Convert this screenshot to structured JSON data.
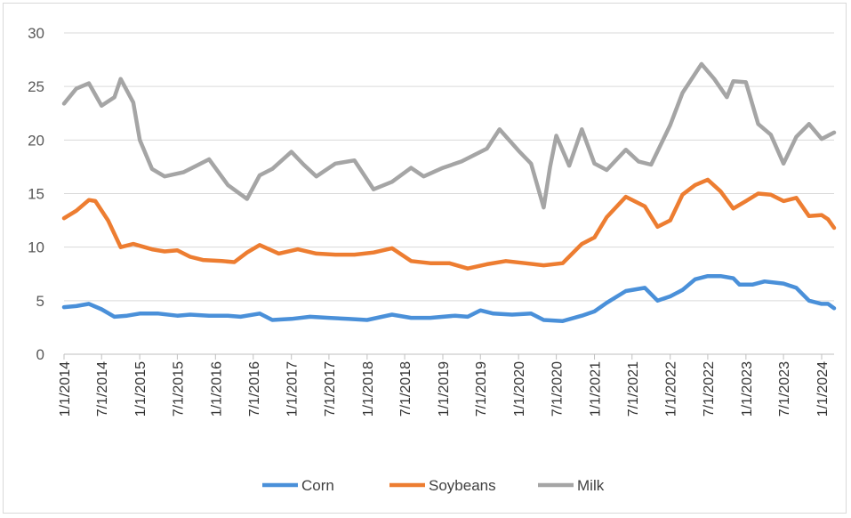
{
  "chart_data": {
    "type": "line",
    "title": "",
    "xlabel": "",
    "ylabel": "",
    "ylim": [
      0,
      30
    ],
    "yticks": [
      0,
      5,
      10,
      15,
      20,
      25,
      30
    ],
    "xlim": [
      "2014-01-01",
      "2024-03-01"
    ],
    "xticks": [
      "1/1/2014",
      "7/1/2014",
      "1/1/2015",
      "7/1/2015",
      "1/1/2016",
      "7/1/2016",
      "1/1/2017",
      "7/1/2017",
      "1/1/2018",
      "7/1/2018",
      "1/1/2019",
      "7/1/2019",
      "1/1/2020",
      "7/1/2020",
      "1/1/2021",
      "7/1/2021",
      "1/1/2022",
      "7/1/2022",
      "1/1/2023",
      "7/1/2023",
      "1/1/2024"
    ],
    "grid": true,
    "legend_position": "bottom",
    "series": [
      {
        "name": "Corn",
        "color": "#4a90d9",
        "points": [
          [
            "2014-01-01",
            4.4
          ],
          [
            "2014-03-01",
            4.5
          ],
          [
            "2014-05-01",
            4.7
          ],
          [
            "2014-07-01",
            4.2
          ],
          [
            "2014-09-01",
            3.5
          ],
          [
            "2014-11-01",
            3.6
          ],
          [
            "2015-01-01",
            3.8
          ],
          [
            "2015-04-01",
            3.8
          ],
          [
            "2015-07-01",
            3.6
          ],
          [
            "2015-09-01",
            3.7
          ],
          [
            "2015-12-01",
            3.6
          ],
          [
            "2016-03-01",
            3.6
          ],
          [
            "2016-05-01",
            3.5
          ],
          [
            "2016-08-01",
            3.8
          ],
          [
            "2016-10-01",
            3.2
          ],
          [
            "2017-01-01",
            3.3
          ],
          [
            "2017-04-01",
            3.5
          ],
          [
            "2017-07-01",
            3.4
          ],
          [
            "2017-10-01",
            3.3
          ],
          [
            "2018-01-01",
            3.2
          ],
          [
            "2018-05-01",
            3.7
          ],
          [
            "2018-08-01",
            3.4
          ],
          [
            "2018-11-01",
            3.4
          ],
          [
            "2019-03-01",
            3.6
          ],
          [
            "2019-05-01",
            3.5
          ],
          [
            "2019-07-01",
            4.1
          ],
          [
            "2019-09-01",
            3.8
          ],
          [
            "2019-12-01",
            3.7
          ],
          [
            "2020-03-01",
            3.8
          ],
          [
            "2020-05-01",
            3.2
          ],
          [
            "2020-08-01",
            3.1
          ],
          [
            "2020-11-01",
            3.6
          ],
          [
            "2021-01-01",
            4.0
          ],
          [
            "2021-03-01",
            4.8
          ],
          [
            "2021-06-01",
            5.9
          ],
          [
            "2021-09-01",
            6.2
          ],
          [
            "2021-11-01",
            5.0
          ],
          [
            "2022-01-01",
            5.4
          ],
          [
            "2022-03-01",
            6.0
          ],
          [
            "2022-05-01",
            7.0
          ],
          [
            "2022-07-01",
            7.3
          ],
          [
            "2022-09-01",
            7.3
          ],
          [
            "2022-11-01",
            7.1
          ],
          [
            "2022-12-01",
            6.5
          ],
          [
            "2023-02-01",
            6.5
          ],
          [
            "2023-04-01",
            6.8
          ],
          [
            "2023-07-01",
            6.6
          ],
          [
            "2023-09-01",
            6.2
          ],
          [
            "2023-11-01",
            5.0
          ],
          [
            "2024-01-01",
            4.7
          ],
          [
            "2024-02-01",
            4.7
          ],
          [
            "2024-03-01",
            4.3
          ]
        ]
      },
      {
        "name": "Soybeans",
        "color": "#ed7d31",
        "points": [
          [
            "2014-01-01",
            12.7
          ],
          [
            "2014-03-01",
            13.4
          ],
          [
            "2014-05-01",
            14.4
          ],
          [
            "2014-06-01",
            14.3
          ],
          [
            "2014-08-01",
            12.5
          ],
          [
            "2014-10-01",
            10.0
          ],
          [
            "2014-12-01",
            10.3
          ],
          [
            "2015-03-01",
            9.8
          ],
          [
            "2015-05-01",
            9.6
          ],
          [
            "2015-07-01",
            9.7
          ],
          [
            "2015-09-01",
            9.1
          ],
          [
            "2015-11-01",
            8.8
          ],
          [
            "2016-02-01",
            8.7
          ],
          [
            "2016-04-01",
            8.6
          ],
          [
            "2016-06-01",
            9.5
          ],
          [
            "2016-08-01",
            10.2
          ],
          [
            "2016-11-01",
            9.4
          ],
          [
            "2017-02-01",
            9.8
          ],
          [
            "2017-05-01",
            9.4
          ],
          [
            "2017-08-01",
            9.3
          ],
          [
            "2017-11-01",
            9.3
          ],
          [
            "2018-02-01",
            9.5
          ],
          [
            "2018-05-01",
            9.9
          ],
          [
            "2018-08-01",
            8.7
          ],
          [
            "2018-11-01",
            8.5
          ],
          [
            "2019-02-01",
            8.5
          ],
          [
            "2019-05-01",
            8.0
          ],
          [
            "2019-08-01",
            8.4
          ],
          [
            "2019-11-01",
            8.7
          ],
          [
            "2020-02-01",
            8.5
          ],
          [
            "2020-05-01",
            8.3
          ],
          [
            "2020-08-01",
            8.5
          ],
          [
            "2020-11-01",
            10.3
          ],
          [
            "2021-01-01",
            10.9
          ],
          [
            "2021-03-01",
            12.8
          ],
          [
            "2021-06-01",
            14.7
          ],
          [
            "2021-09-01",
            13.8
          ],
          [
            "2021-11-01",
            11.9
          ],
          [
            "2022-01-01",
            12.5
          ],
          [
            "2022-03-01",
            14.9
          ],
          [
            "2022-05-01",
            15.8
          ],
          [
            "2022-07-01",
            16.3
          ],
          [
            "2022-09-01",
            15.2
          ],
          [
            "2022-11-01",
            13.6
          ],
          [
            "2023-01-01",
            14.3
          ],
          [
            "2023-03-01",
            15.0
          ],
          [
            "2023-05-01",
            14.9
          ],
          [
            "2023-07-01",
            14.3
          ],
          [
            "2023-09-01",
            14.6
          ],
          [
            "2023-11-01",
            12.9
          ],
          [
            "2024-01-01",
            13.0
          ],
          [
            "2024-02-01",
            12.6
          ],
          [
            "2024-03-01",
            11.8
          ]
        ]
      },
      {
        "name": "Milk",
        "color": "#a5a5a5",
        "points": [
          [
            "2014-01-01",
            23.4
          ],
          [
            "2014-03-01",
            24.8
          ],
          [
            "2014-05-01",
            25.3
          ],
          [
            "2014-07-01",
            23.2
          ],
          [
            "2014-09-01",
            24.0
          ],
          [
            "2014-10-01",
            25.7
          ],
          [
            "2014-12-01",
            23.5
          ],
          [
            "2015-01-01",
            20.0
          ],
          [
            "2015-03-01",
            17.3
          ],
          [
            "2015-05-01",
            16.6
          ],
          [
            "2015-08-01",
            17.0
          ],
          [
            "2015-10-01",
            17.6
          ],
          [
            "2015-12-01",
            18.2
          ],
          [
            "2016-03-01",
            15.8
          ],
          [
            "2016-06-01",
            14.5
          ],
          [
            "2016-08-01",
            16.7
          ],
          [
            "2016-10-01",
            17.3
          ],
          [
            "2017-01-01",
            18.9
          ],
          [
            "2017-03-01",
            17.7
          ],
          [
            "2017-05-01",
            16.6
          ],
          [
            "2017-08-01",
            17.8
          ],
          [
            "2017-11-01",
            18.1
          ],
          [
            "2018-02-01",
            15.4
          ],
          [
            "2018-05-01",
            16.1
          ],
          [
            "2018-08-01",
            17.4
          ],
          [
            "2018-10-01",
            16.6
          ],
          [
            "2019-01-01",
            17.4
          ],
          [
            "2019-04-01",
            18.0
          ],
          [
            "2019-08-01",
            19.2
          ],
          [
            "2019-10-01",
            21.0
          ],
          [
            "2020-01-01",
            19.0
          ],
          [
            "2020-03-01",
            17.8
          ],
          [
            "2020-05-01",
            13.7
          ],
          [
            "2020-06-01",
            17.5
          ],
          [
            "2020-07-01",
            20.4
          ],
          [
            "2020-09-01",
            17.6
          ],
          [
            "2020-11-01",
            21.0
          ],
          [
            "2021-01-01",
            17.8
          ],
          [
            "2021-03-01",
            17.2
          ],
          [
            "2021-06-01",
            19.1
          ],
          [
            "2021-08-01",
            18.0
          ],
          [
            "2021-10-01",
            17.7
          ],
          [
            "2022-01-01",
            21.4
          ],
          [
            "2022-03-01",
            24.4
          ],
          [
            "2022-06-01",
            27.1
          ],
          [
            "2022-08-01",
            25.7
          ],
          [
            "2022-10-01",
            24.0
          ],
          [
            "2022-11-01",
            25.5
          ],
          [
            "2023-01-01",
            25.4
          ],
          [
            "2023-03-01",
            21.5
          ],
          [
            "2023-05-01",
            20.5
          ],
          [
            "2023-07-01",
            17.8
          ],
          [
            "2023-09-01",
            20.3
          ],
          [
            "2023-11-01",
            21.5
          ],
          [
            "2024-01-01",
            20.1
          ],
          [
            "2024-03-01",
            20.7
          ]
        ]
      }
    ]
  }
}
